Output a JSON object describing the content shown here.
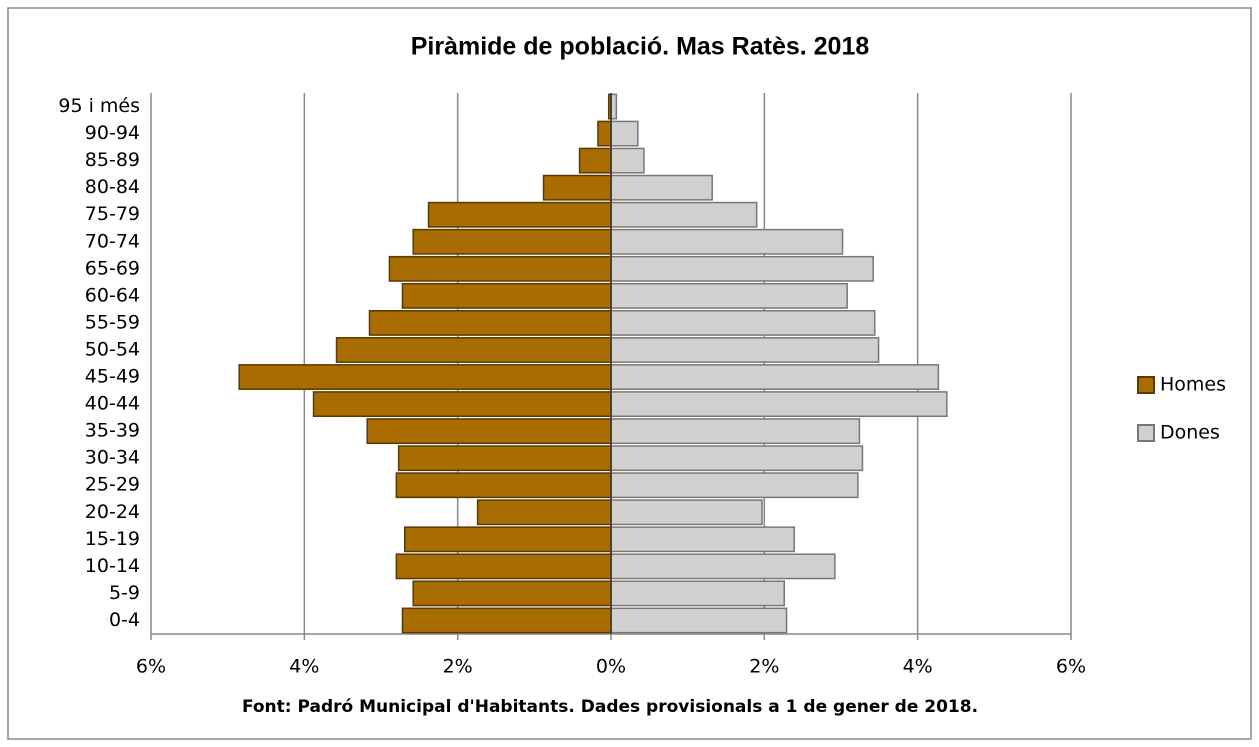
{
  "chart_data": {
    "type": "pyramid",
    "title": "Piràmide de població. Mas Ratès. 2018",
    "footnote": "Font: Padró Municipal  d'Habitants. Dades provisionals a 1 de gener de 2018.",
    "categories": [
      "0-4",
      "5-9",
      "10-14",
      "15-19",
      "20-24",
      "25-29",
      "30-34",
      "35-39",
      "40-44",
      "45-49",
      "50-54",
      "55-59",
      "60-64",
      "65-69",
      "70-74",
      "75-79",
      "80-84",
      "85-89",
      "90-94",
      "95 i més"
    ],
    "series": [
      {
        "name": "Homes",
        "color": "#a86c00",
        "values": [
          -2.72,
          -2.58,
          -2.8,
          -2.69,
          -1.74,
          -2.8,
          -2.77,
          -3.18,
          -3.88,
          -4.85,
          -3.58,
          -3.15,
          -2.72,
          -2.89,
          -2.58,
          -2.38,
          -0.88,
          -0.41,
          -0.17,
          -0.03
        ]
      },
      {
        "name": "Dones",
        "color": "#d0d0d0",
        "values": [
          2.29,
          2.26,
          2.92,
          2.39,
          1.97,
          3.22,
          3.28,
          3.24,
          4.38,
          4.27,
          3.49,
          3.44,
          3.08,
          3.42,
          3.02,
          1.9,
          1.32,
          0.43,
          0.35,
          0.07
        ]
      }
    ],
    "xlim": [
      -6,
      6
    ],
    "xticks": [
      {
        "value": -6,
        "label": "6%"
      },
      {
        "value": -4,
        "label": "4%"
      },
      {
        "value": -2,
        "label": "2%"
      },
      {
        "value": 0,
        "label": "0%"
      },
      {
        "value": 2,
        "label": "2%"
      },
      {
        "value": 4,
        "label": "4%"
      },
      {
        "value": 6,
        "label": "6%"
      }
    ],
    "grid": true,
    "legend": "right"
  }
}
